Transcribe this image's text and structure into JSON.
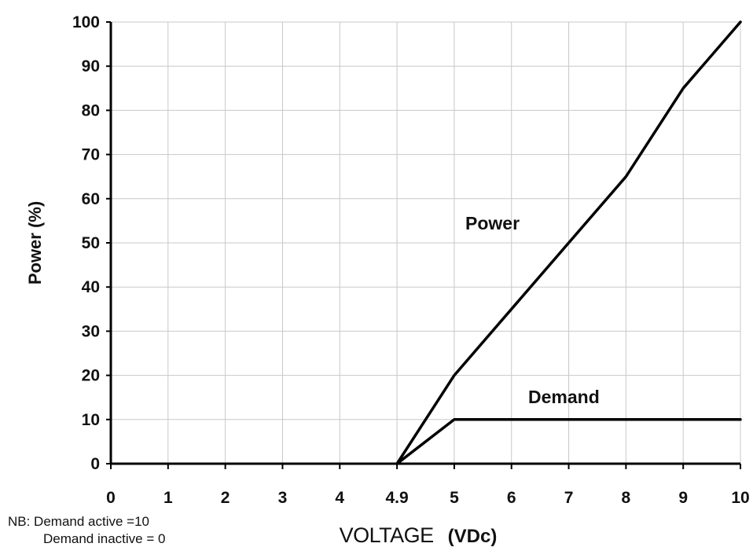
{
  "chart_data": {
    "type": "line",
    "ylabel": "Power (%)",
    "xlabel": "VOLTAGE",
    "xlabel_unit": "(VDc)",
    "ylim": [
      0,
      100
    ],
    "y_ticks": [
      0,
      10,
      20,
      30,
      40,
      50,
      60,
      70,
      80,
      90,
      100
    ],
    "x_categories": [
      "0",
      "1",
      "2",
      "3",
      "4",
      "4.9",
      "5",
      "6",
      "7",
      "8",
      "9",
      "10"
    ],
    "grid": true,
    "series": [
      {
        "name": "Power",
        "x": [
          "4.9",
          "5",
          "6",
          "7",
          "8",
          "9",
          "10"
        ],
        "y": [
          0,
          20,
          35,
          50,
          65,
          85,
          100
        ]
      },
      {
        "name": "Demand",
        "x": [
          "4.9",
          "5",
          "6",
          "7",
          "8",
          "9",
          "10"
        ],
        "y": [
          0,
          10,
          10,
          10,
          10,
          10,
          10
        ]
      }
    ],
    "notes": [
      "NB: Demand active =10",
      "Demand inactive = 0"
    ]
  }
}
